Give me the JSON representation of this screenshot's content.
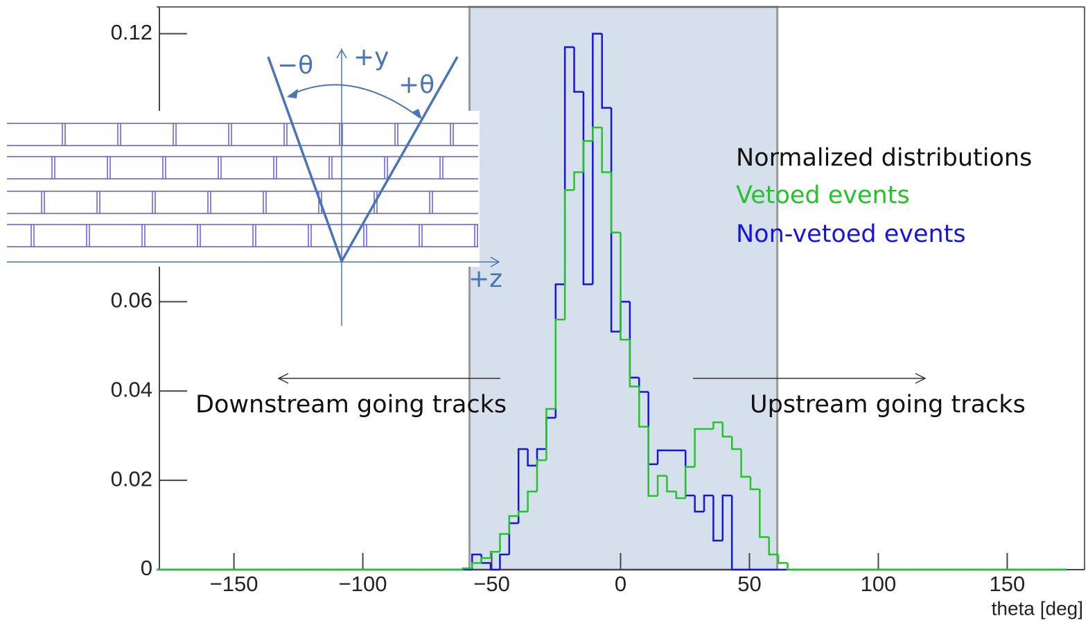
{
  "chart_data": {
    "type": "histogram",
    "x_label": "theta [deg]",
    "legend_title": "Normalized distributions",
    "annotations": [
      "Downstream going tracks",
      "Upstream going tracks"
    ],
    "inset_labels": [
      "−θ",
      "+y",
      "+θ",
      "+z"
    ],
    "highlight_xrange": [
      -58.6,
      60.8
    ],
    "highlight_color": "#d6e0ec",
    "xlim": [
      -180,
      180
    ],
    "ylim": [
      0,
      0.126
    ],
    "xticks": [
      {
        "value": -150,
        "label": "−150"
      },
      {
        "value": -100,
        "label": "−100"
      },
      {
        "value": -50,
        "label": "−50"
      },
      0,
      50,
      100,
      150
    ],
    "yticks": [
      0,
      0.02,
      0.04,
      0.06,
      0.12
    ],
    "bins": [
      -180,
      -176.4,
      -172.8,
      -169.2,
      -165.6,
      -162,
      -158.4,
      -154.8,
      -151.2,
      -147.6,
      -144,
      -140.4,
      -136.8,
      -133.2,
      -129.6,
      -126,
      -122.4,
      -118.8,
      -115.2,
      -111.6,
      -108,
      -104.4,
      -100.8,
      -97.2,
      -93.6,
      -90,
      -86.4,
      -82.8,
      -79.2,
      -75.6,
      -72,
      -68.4,
      -64.8,
      -61.2,
      -57.6,
      -54,
      -50.4,
      -46.8,
      -43.2,
      -39.6,
      -36,
      -32.4,
      -28.8,
      -25.2,
      -21.6,
      -18,
      -14.4,
      -10.8,
      -7.2,
      -3.6,
      0,
      3.6,
      7.2,
      10.8,
      14.4,
      18,
      21.6,
      25.2,
      28.8,
      32.4,
      36,
      39.6,
      43.2,
      46.8,
      50.4,
      54,
      57.6,
      61.2,
      64.8,
      68.4,
      72,
      75.6,
      79.2,
      82.8,
      86.4,
      90,
      93.6,
      97.2,
      100.8,
      104.4,
      108,
      111.6,
      115.2,
      118.8,
      122.4,
      126,
      129.6,
      133.2,
      136.8,
      140.4,
      144,
      147.6,
      151.2,
      154.8,
      158.4,
      162,
      165.6,
      169.2,
      172.8,
      176.4,
      180
    ],
    "series": [
      {
        "name": "Non-vetoed events",
        "color": "#1515e0",
        "values": [
          0,
          0,
          0,
          0,
          0,
          0,
          0,
          0,
          0,
          0,
          0,
          0,
          0,
          0,
          0,
          0,
          0,
          0,
          0,
          0,
          0,
          0,
          0,
          0,
          0,
          0,
          0,
          0,
          0,
          0,
          0,
          0,
          0,
          0,
          0.0034,
          0.0015,
          0,
          0.0034,
          0.0104,
          0.027,
          0.0233,
          0.027,
          0.034,
          0.0639,
          0.117,
          0.107,
          0.0639,
          0.12,
          0.1034,
          0.0533,
          0.06,
          0.043,
          0.0398,
          0.0236,
          0.0267,
          0.0267,
          0.0267,
          0.0166,
          0.013,
          0.0166,
          0.0065,
          0.0166,
          0,
          0,
          0,
          0,
          0,
          0,
          0,
          0,
          0,
          0,
          0,
          0,
          0,
          0,
          0,
          0,
          0,
          0,
          0,
          0,
          0,
          0,
          0,
          0,
          0,
          0,
          0,
          0,
          0,
          0,
          0,
          0,
          0,
          0,
          0,
          0
        ]
      },
      {
        "name": "Vetoed events",
        "color": "#22c42a",
        "values": [
          0,
          0,
          0,
          0,
          0,
          0,
          0,
          0,
          0,
          0,
          0,
          0,
          0,
          0,
          0,
          0,
          0,
          0,
          0,
          0,
          0,
          0,
          0,
          0,
          0,
          0,
          0,
          0,
          0,
          0,
          0,
          0,
          0,
          0.0003,
          0.0015,
          0.0026,
          0.004,
          0.008,
          0.012,
          0.013,
          0.0175,
          0.0245,
          0.036,
          0.056,
          0.085,
          0.089,
          0.096,
          0.099,
          0.089,
          0.0755,
          0.0515,
          0.041,
          0.032,
          0.0165,
          0.021,
          0.0175,
          0.016,
          0.023,
          0.0315,
          0.0315,
          0.033,
          0.0298,
          0.027,
          0.0208,
          0.018,
          0.0073,
          0.0034,
          0.0015,
          0,
          0,
          0,
          0,
          0,
          0,
          0,
          0,
          0,
          0,
          0,
          0,
          0,
          0,
          0,
          0,
          0,
          0,
          0,
          0,
          0,
          0,
          0,
          0,
          0,
          0,
          0,
          0,
          0,
          0
        ]
      }
    ]
  }
}
